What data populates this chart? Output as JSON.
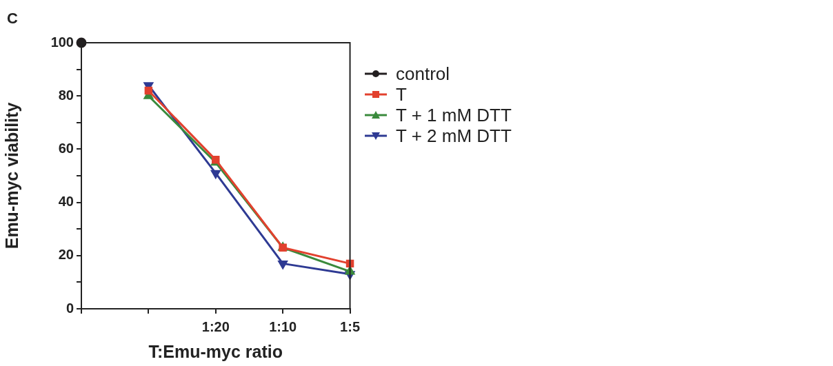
{
  "chart_data": {
    "type": "line",
    "xlabel": "T:Emu-myc ratio",
    "ylabel": "Emu-myc viability",
    "annotations": [
      "C"
    ],
    "categories": [
      null,
      null,
      "1:20",
      "1:10",
      "1:5"
    ],
    "ylim": [
      0,
      100
    ],
    "yticks": [
      0,
      {
        "value": 10,
        "label": null
      },
      20,
      {
        "value": 30,
        "label": null
      },
      40,
      {
        "value": 50,
        "label": null
      },
      60,
      {
        "value": 70,
        "label": null
      },
      80,
      {
        "value": 90,
        "label": null
      },
      100
    ],
    "legend": "right",
    "line_style": "solid",
    "series": [
      {
        "name": "control",
        "color": "#231f20",
        "marker": "circle",
        "values": [
          100,
          null,
          null,
          null,
          null
        ]
      },
      {
        "name": "T",
        "color": "#e2412e",
        "marker": "square",
        "values": [
          null,
          82,
          56,
          23,
          17
        ]
      },
      {
        "name": "T + 1 mM DTT",
        "color": "#3a8a3c",
        "marker": "triangle",
        "values": [
          null,
          80,
          55,
          23,
          14
        ]
      },
      {
        "name": "T + 2 mM DTT",
        "color": "#2e3a93",
        "marker": "triangle-down",
        "values": [
          null,
          84,
          51,
          17,
          13
        ]
      }
    ]
  }
}
